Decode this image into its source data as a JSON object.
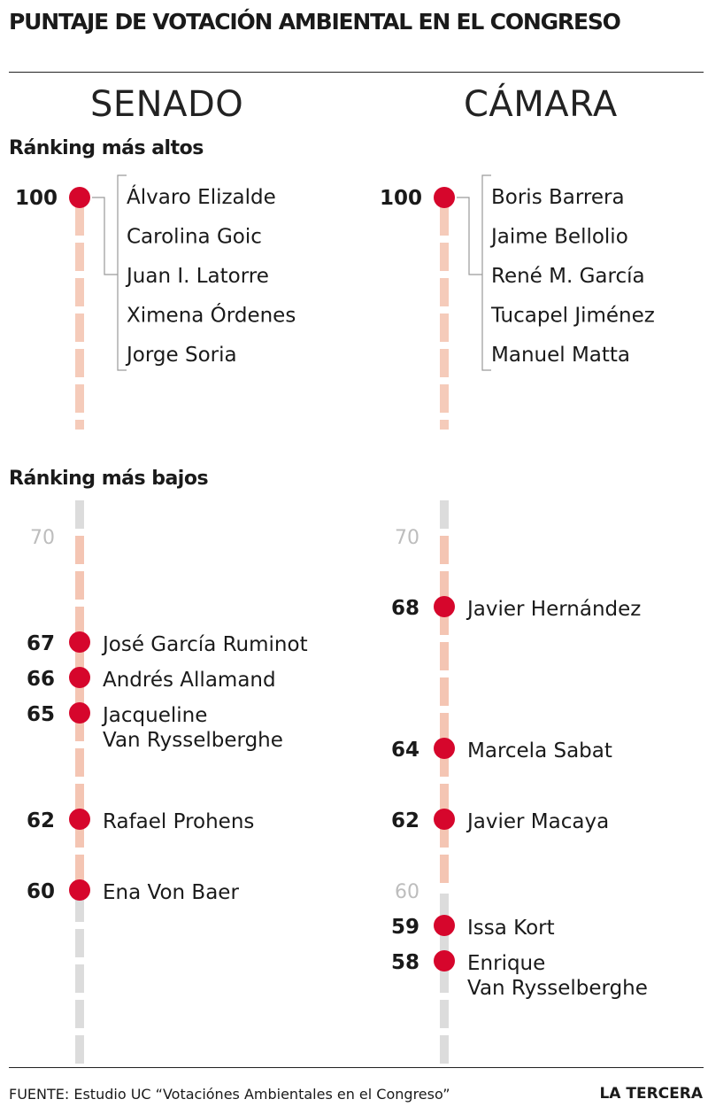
{
  "title": "PUNTAJE DE VOTACIÓN AMBIENTAL EN EL CONGRESO",
  "columns": {
    "senado": "SENADO",
    "camara": "CÁMARA"
  },
  "sections": {
    "top": "Ránking más altos",
    "bottom": "Ránking más bajos"
  },
  "footer": {
    "source": "FUENTE: Estudio UC “Votaciónes Ambientales en el Congreso”",
    "brand": "LA TERCERA"
  },
  "colors": {
    "dot": "#d6062c",
    "line_highlight": "#f4c5b3",
    "line_gray": "#dcdcdc",
    "scale_text": "#bdbdbd",
    "bracket": "#9a9a9a"
  },
  "chart_data": [
    {
      "type": "scatter",
      "panel": "Senado - Ránking más altos",
      "score": 100,
      "names": [
        "Álvaro Elizalde",
        "Carolina Goic",
        "Juan I. Latorre",
        "Ximena Órdenes",
        "Jorge Soria"
      ]
    },
    {
      "type": "scatter",
      "panel": "Cámara - Ránking más altos",
      "score": 100,
      "names": [
        "Boris Barrera",
        "Jaime Bellolio",
        "René M. García",
        "Tucapel Jiménez",
        "Manuel Matta"
      ]
    },
    {
      "type": "scatter",
      "panel": "Senado - Ránking más bajos",
      "scale_label": 70,
      "highlight_range": [
        60,
        70
      ],
      "points": [
        {
          "score": 67,
          "label": [
            "José García Ruminot"
          ]
        },
        {
          "score": 66,
          "label": [
            "Andrés Allamand"
          ]
        },
        {
          "score": 65,
          "label": [
            "Jacqueline",
            "Van Rysselberghe"
          ]
        },
        {
          "score": 62,
          "label": [
            "Rafael Prohens"
          ]
        },
        {
          "score": 60,
          "label": [
            "Ena Von Baer"
          ]
        }
      ]
    },
    {
      "type": "scatter",
      "panel": "Cámara - Ránking más bajos",
      "scale_labels": [
        70,
        60
      ],
      "highlight_range": [
        60,
        70
      ],
      "points": [
        {
          "score": 68,
          "label": [
            "Javier Hernández"
          ]
        },
        {
          "score": 64,
          "label": [
            "Marcela Sabat"
          ]
        },
        {
          "score": 62,
          "label": [
            "Javier Macaya"
          ]
        },
        {
          "score": 59,
          "label": [
            "Issa Kort"
          ]
        },
        {
          "score": 58,
          "label": [
            "Enrique",
            "Van Rysselberghe"
          ]
        }
      ]
    }
  ]
}
